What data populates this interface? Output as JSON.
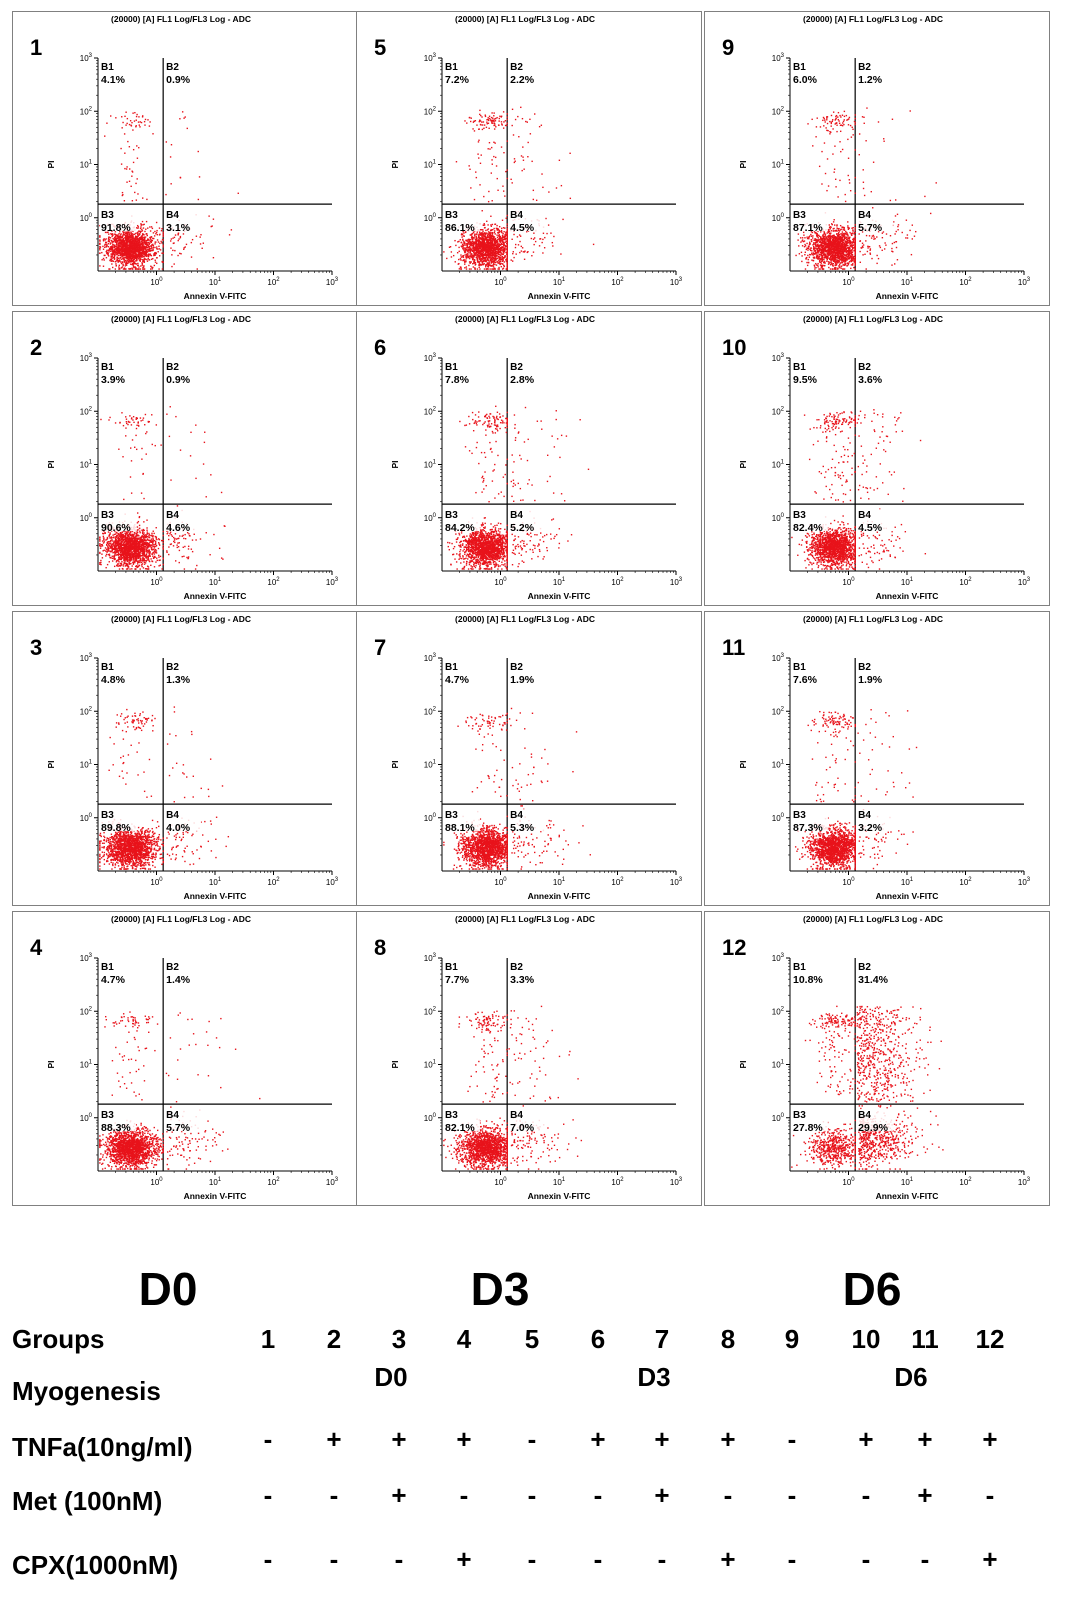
{
  "panels": [
    {
      "id": "1",
      "day": "D0",
      "b1": "4.1%",
      "b2": "0.9%",
      "b3": "91.8%",
      "b4": "3.1%"
    },
    {
      "id": "2",
      "day": "D0",
      "b1": "3.9%",
      "b2": "0.9%",
      "b3": "90.6%",
      "b4": "4.6%"
    },
    {
      "id": "3",
      "day": "D0",
      "b1": "4.8%",
      "b2": "1.3%",
      "b3": "89.8%",
      "b4": "4.0%"
    },
    {
      "id": "4",
      "day": "D0",
      "b1": "4.7%",
      "b2": "1.4%",
      "b3": "88.3%",
      "b4": "5.7%"
    },
    {
      "id": "5",
      "day": "D3",
      "b1": "7.2%",
      "b2": "2.2%",
      "b3": "86.1%",
      "b4": "4.5%"
    },
    {
      "id": "6",
      "day": "D3",
      "b1": "7.8%",
      "b2": "2.8%",
      "b3": "84.2%",
      "b4": "5.2%"
    },
    {
      "id": "7",
      "day": "D3",
      "b1": "4.7%",
      "b2": "1.9%",
      "b3": "88.1%",
      "b4": "5.3%"
    },
    {
      "id": "8",
      "day": "D3",
      "b1": "7.7%",
      "b2": "3.3%",
      "b3": "82.1%",
      "b4": "7.0%"
    },
    {
      "id": "9",
      "day": "D6",
      "b1": "6.0%",
      "b2": "1.2%",
      "b3": "87.1%",
      "b4": "5.7%"
    },
    {
      "id": "10",
      "day": "D6",
      "b1": "9.5%",
      "b2": "3.6%",
      "b3": "82.4%",
      "b4": "4.5%"
    },
    {
      "id": "11",
      "day": "D6",
      "b1": "7.6%",
      "b2": "1.9%",
      "b3": "87.3%",
      "b4": "3.2%"
    },
    {
      "id": "12",
      "day": "D6",
      "b1": "10.8%",
      "b2": "31.4%",
      "b3": "27.8%",
      "b4": "29.9%"
    }
  ],
  "chart_data": {
    "type": "scatter",
    "plot_title": "(20000) [A] FL1 Log/FL3 Log - ADC",
    "xlabel": "Annexin V-FITC",
    "ylabel": "PI",
    "x_scale": "log",
    "y_scale": "log",
    "x_tick_labels": [
      "10^0",
      "10^1",
      "10^2",
      "10^3"
    ],
    "y_tick_labels": [
      "10^0",
      "10^1",
      "10^2",
      "10^3"
    ],
    "quadrant_labels": [
      "B1",
      "B2",
      "B3",
      "B4"
    ],
    "quadrant_cut_x": 1.3,
    "quadrant_cut_y": 1.8,
    "point_color": "#e8131b",
    "note": "Percentages per quadrant per panel are listed in panels[]"
  },
  "day_labels": [
    "D0",
    "D3",
    "D6"
  ],
  "legend": {
    "groups_label": "Groups",
    "myogenesis_label": "Myogenesis",
    "tnfa_label": "TNFa(10ng/ml)",
    "met_label": "Met (100nM)",
    "cpx_label": "CPX(1000nM)",
    "groups": [
      "1",
      "2",
      "3",
      "4",
      "5",
      "6",
      "7",
      "8",
      "9",
      "10",
      "11",
      "12"
    ],
    "myogenesis": [
      "D0",
      "D3",
      "D6"
    ],
    "tnfa": [
      "-",
      "+",
      "+",
      "+",
      "-",
      "+",
      "+",
      "+",
      "-",
      "+",
      "+",
      "+"
    ],
    "met": [
      "-",
      "-",
      "+",
      "-",
      "-",
      "-",
      "+",
      "-",
      "-",
      "-",
      "+",
      "-"
    ],
    "cpx": [
      "-",
      "-",
      "-",
      "+",
      "-",
      "-",
      "-",
      "+",
      "-",
      "-",
      "-",
      "+"
    ]
  }
}
